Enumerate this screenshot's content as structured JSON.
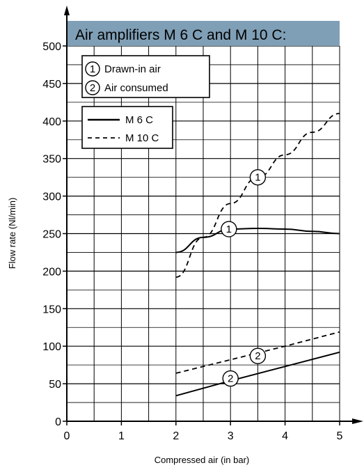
{
  "chart_data": {
    "type": "line",
    "title": "Air amplifiers M 6 C and M 10 C:",
    "xlabel": "Compressed air (in bar)",
    "ylabel": "Flow rate (Nl/min)",
    "xlim": [
      0,
      5
    ],
    "ylim": [
      0,
      500
    ],
    "xticks": [
      "0",
      "1",
      "2",
      "3",
      "4",
      "5"
    ],
    "yticks": [
      "0",
      "50",
      "100",
      "150",
      "200",
      "250",
      "300",
      "350",
      "400",
      "450",
      "500"
    ],
    "grid": true,
    "curve_legend": [
      {
        "marker": "1",
        "label": "Drawn-in air"
      },
      {
        "marker": "2",
        "label": "Air consumed"
      }
    ],
    "style_legend": [
      {
        "label": "M 6 C",
        "style": "solid"
      },
      {
        "label": "M 10 C",
        "style": "dashed"
      }
    ],
    "series": [
      {
        "name": "M 6 C",
        "curve": "1",
        "style": "solid",
        "x": [
          2,
          2.5,
          3,
          3.5,
          4,
          4.5,
          5
        ],
        "y": [
          225,
          245,
          256,
          257,
          256,
          253,
          250
        ],
        "marker_at": [
          2.97,
          256
        ]
      },
      {
        "name": "M 10 C",
        "curve": "1",
        "style": "dashed",
        "x": [
          2,
          2.5,
          3,
          3.5,
          4,
          4.5,
          5
        ],
        "y": [
          192,
          245,
          290,
          325,
          355,
          385,
          410
        ],
        "marker_at": [
          3.5,
          325
        ]
      },
      {
        "name": "M 6 C",
        "curve": "2",
        "style": "solid",
        "x": [
          2,
          3,
          4,
          5
        ],
        "y": [
          34,
          54,
          73,
          92
        ],
        "marker_at": [
          3.0,
          57
        ]
      },
      {
        "name": "M 10 C",
        "curve": "2",
        "style": "dashed",
        "x": [
          2,
          3,
          4,
          5
        ],
        "y": [
          64,
          82,
          100,
          119
        ],
        "marker_at": [
          3.5,
          87
        ]
      }
    ],
    "colors": {
      "title_bar": "#7f9fb6",
      "line": "#000000",
      "grid": "#000000"
    }
  }
}
